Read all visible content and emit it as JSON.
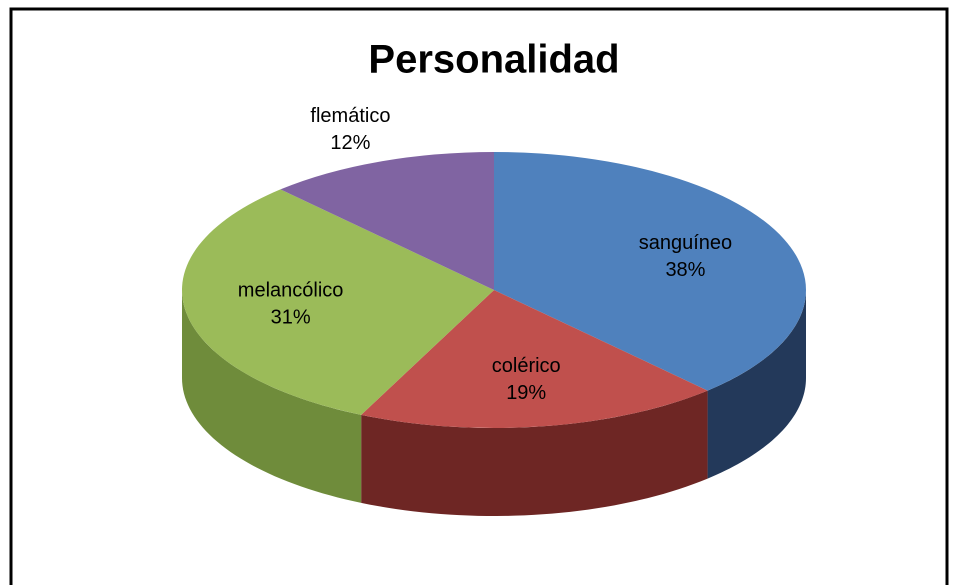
{
  "chart_data": {
    "type": "pie",
    "title": "Personalidad",
    "categories": [
      "sanguíneo",
      "colérico",
      "melancólico",
      "flemático"
    ],
    "values": [
      38,
      19,
      31,
      12
    ],
    "value_labels": [
      "38%",
      "19%",
      "31%",
      "12%"
    ],
    "colors": [
      "#4f81bd",
      "#c0504d",
      "#9bbb59",
      "#8064a2"
    ],
    "side_colors": [
      "#23395a",
      "#6e2624",
      "#6f8c3b",
      "#4f3b6b"
    ]
  }
}
